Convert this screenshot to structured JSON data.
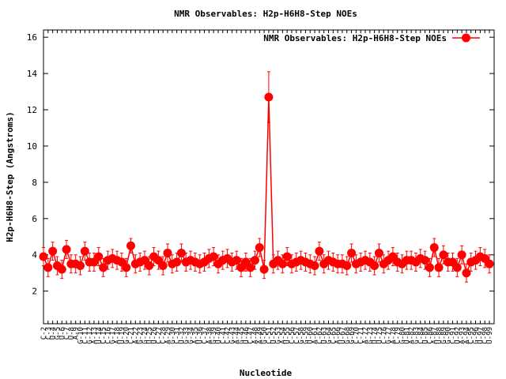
{
  "chart_data": {
    "type": "line",
    "title": "NMR Observables: H2p-H6H8-Step NOEs",
    "xlabel": "Nucleotide",
    "ylabel": "H2p-H6H8-Step (Angstroms)",
    "categories": [
      "C-2",
      "C-3",
      "U-4",
      "G-5",
      "U-6",
      "C-7",
      "U-8",
      "A-9",
      "G-10",
      "C-11",
      "G-12",
      "A-13",
      "U-14",
      "C-15",
      "C-16",
      "G-17",
      "A-18",
      "U-19",
      "G-20",
      "C-21",
      "A-22",
      "G-23",
      "G-24",
      "U-25",
      "U-26",
      "C-27",
      "C-28",
      "A-29",
      "G-30",
      "C-31",
      "U-32",
      "G-33",
      "G-34",
      "A-35",
      "U-36",
      "C-37",
      "A-38",
      "G-39",
      "U-40",
      "C-41",
      "C-42",
      "G-43",
      "A-44",
      "G-45",
      "U-46",
      "C-47",
      "A-48",
      "A-49",
      "G-50",
      "C-51",
      "U-52",
      "G-53",
      "A-54",
      "U-55",
      "C-56",
      "C-57",
      "G-58",
      "G-59",
      "U-60",
      "A-61",
      "C-62",
      "U-63",
      "G-64",
      "C-65",
      "A-66",
      "U-67",
      "G-68",
      "G-69",
      "C-70",
      "C-71",
      "A-72",
      "G-73",
      "U-74",
      "U-75",
      "C-76",
      "G-77",
      "A-78",
      "C-79",
      "G-80",
      "U-81",
      "A-82",
      "G-83",
      "C-84",
      "U-85",
      "C-86",
      "A-87",
      "U-88",
      "G-89",
      "G-90",
      "C-91",
      "U-92",
      "A-93",
      "A-94",
      "C-95",
      "G-96",
      "U-97",
      "C-98",
      "U-99"
    ],
    "series": [
      {
        "name": "NMR Observables: H2p-H6H8-Step NOEs",
        "color": "#ff0000",
        "values": [
          3.9,
          3.3,
          4.2,
          3.4,
          3.2,
          4.3,
          3.5,
          3.5,
          3.4,
          4.2,
          3.6,
          3.6,
          3.9,
          3.3,
          3.7,
          3.8,
          3.7,
          3.6,
          3.3,
          4.5,
          3.5,
          3.6,
          3.7,
          3.4,
          3.9,
          3.7,
          3.4,
          4.1,
          3.5,
          3.6,
          4.1,
          3.6,
          3.7,
          3.6,
          3.5,
          3.6,
          3.8,
          3.9,
          3.5,
          3.7,
          3.8,
          3.6,
          3.7,
          3.3,
          3.6,
          3.3,
          3.7,
          4.4,
          3.2,
          12.7,
          3.5,
          3.7,
          3.5,
          3.9,
          3.5,
          3.6,
          3.7,
          3.6,
          3.5,
          3.4,
          4.2,
          3.5,
          3.7,
          3.6,
          3.5,
          3.5,
          3.4,
          4.1,
          3.5,
          3.6,
          3.7,
          3.6,
          3.4,
          4.1,
          3.5,
          3.7,
          3.9,
          3.6,
          3.5,
          3.7,
          3.7,
          3.6,
          3.8,
          3.7,
          3.3,
          4.4,
          3.3,
          4.0,
          3.6,
          3.6,
          3.3,
          4.0,
          3.0,
          3.6,
          3.7,
          3.9,
          3.8,
          3.5
        ],
        "errors": [
          0.5,
          0.5,
          0.5,
          0.5,
          0.5,
          0.5,
          0.5,
          0.5,
          0.5,
          0.5,
          0.5,
          0.5,
          0.5,
          0.5,
          0.5,
          0.5,
          0.5,
          0.5,
          0.5,
          0.4,
          0.5,
          0.5,
          0.5,
          0.5,
          0.5,
          0.5,
          0.5,
          0.5,
          0.5,
          0.5,
          0.5,
          0.5,
          0.5,
          0.5,
          0.5,
          0.5,
          0.5,
          0.5,
          0.5,
          0.5,
          0.5,
          0.5,
          0.5,
          0.5,
          0.5,
          0.5,
          0.5,
          0.5,
          0.5,
          1.4,
          0.5,
          0.5,
          0.5,
          0.5,
          0.5,
          0.5,
          0.5,
          0.5,
          0.5,
          0.5,
          0.5,
          0.5,
          0.5,
          0.5,
          0.5,
          0.5,
          0.5,
          0.5,
          0.5,
          0.5,
          0.5,
          0.5,
          0.5,
          0.5,
          0.5,
          0.5,
          0.5,
          0.5,
          0.5,
          0.5,
          0.5,
          0.5,
          0.5,
          0.5,
          0.5,
          0.5,
          0.5,
          0.5,
          0.5,
          0.5,
          0.5,
          0.5,
          0.5,
          0.5,
          0.5,
          0.5,
          0.5,
          0.5
        ]
      }
    ],
    "ylim": [
      0.2,
      16.4
    ],
    "yticks": [
      2,
      4,
      6,
      8,
      10,
      12,
      14,
      16
    ],
    "legend": "top-right",
    "grid": false
  }
}
